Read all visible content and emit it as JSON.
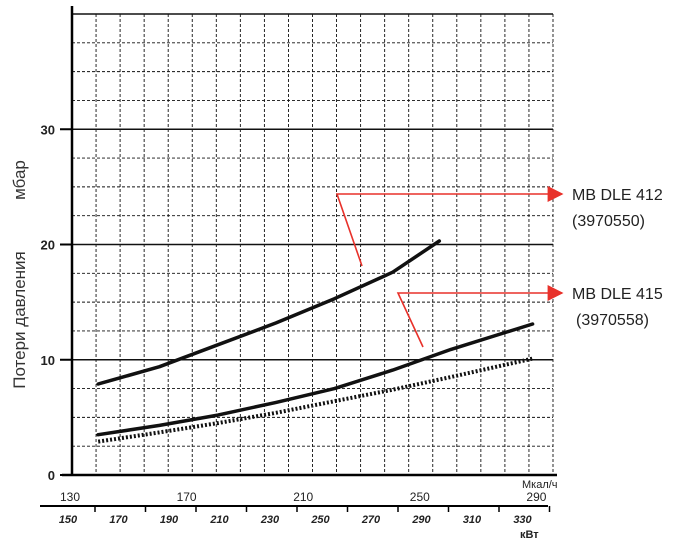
{
  "chart_data": {
    "type": "line",
    "ylabel_top": "мбар",
    "ylabel": "Потери давления",
    "ylim": [
      0,
      40
    ],
    "yticks": [
      0,
      10,
      20,
      30
    ],
    "x_primary": {
      "unit": "Мкал/ч",
      "range": [
        130,
        295
      ],
      "ticks": [
        130,
        170,
        210,
        250,
        290
      ]
    },
    "x_secondary": {
      "unit": "кВт",
      "ticks": [
        150,
        170,
        190,
        210,
        230,
        250,
        270,
        290,
        310,
        330
      ]
    },
    "grid": true,
    "series": [
      {
        "name": "MB DLE 412 (3970550)",
        "style": "solid",
        "points": [
          [
            139,
            7.9
          ],
          [
            160,
            9.4
          ],
          [
            180,
            11.3
          ],
          [
            200,
            13.2
          ],
          [
            220,
            15.3
          ],
          [
            240,
            17.6
          ],
          [
            256,
            20.3
          ]
        ]
      },
      {
        "name": "MB DLE 415 (3970558)",
        "style": "solid",
        "points": [
          [
            139,
            3.5
          ],
          [
            160,
            4.3
          ],
          [
            180,
            5.2
          ],
          [
            200,
            6.3
          ],
          [
            220,
            7.5
          ],
          [
            240,
            9.1
          ],
          [
            260,
            10.9
          ],
          [
            288,
            13.1
          ]
        ]
      },
      {
        "name": "",
        "style": "dotted",
        "points": [
          [
            139,
            2.9
          ],
          [
            160,
            3.7
          ],
          [
            180,
            4.5
          ],
          [
            200,
            5.4
          ],
          [
            220,
            6.4
          ],
          [
            240,
            7.4
          ],
          [
            260,
            8.5
          ],
          [
            288,
            10.1
          ]
        ]
      }
    ],
    "legend": [
      {
        "line1": "MB DLE 412",
        "line2": "(3970550)",
        "color": "#e8312a"
      },
      {
        "line1": "MB DLE 415",
        "line2": "(3970558)",
        "color": "#e8312a"
      }
    ]
  }
}
